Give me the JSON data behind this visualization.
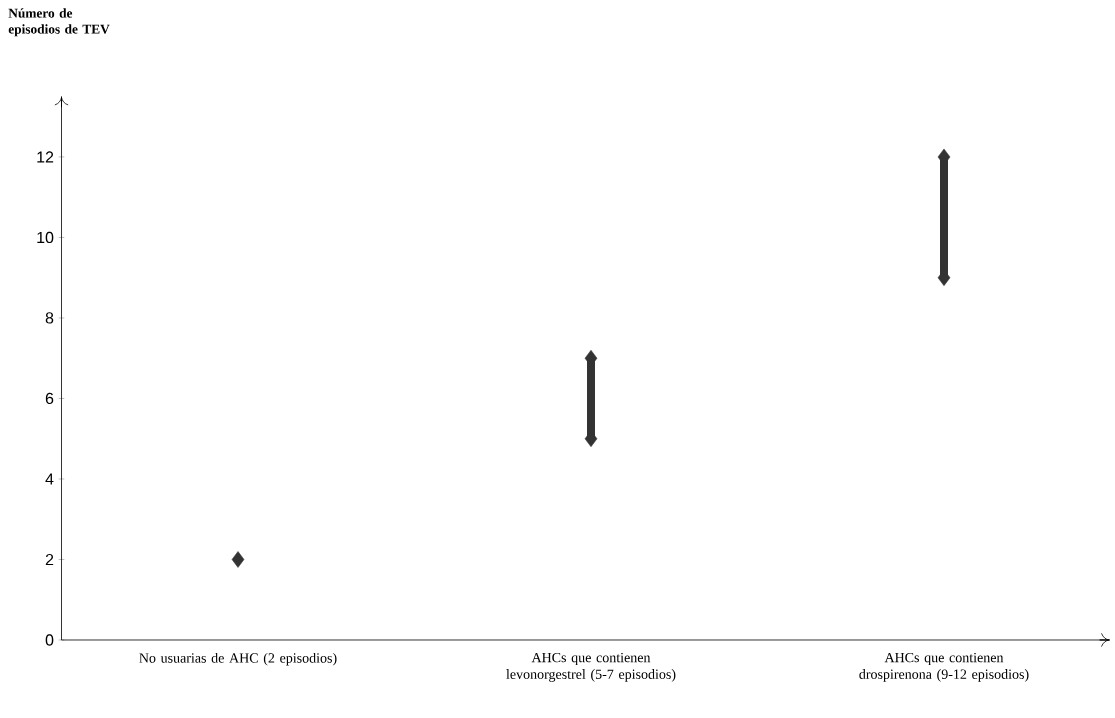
{
  "chart_data": {
    "type": "scatter",
    "ylabel": "Número de episodios de TEV",
    "categories": [
      "No usuarias de AHC (2 episodios)",
      "AHCs que contienen levonorgestrel (5-7 episodios)",
      "AHCs que contienen drospirenona (9-12 episodios)"
    ],
    "series": [
      {
        "type": "bar",
        "color": "#333333",
        "base": [
          null,
          5,
          9
        ],
        "values": [
          null,
          2,
          3
        ]
      },
      {
        "color": "#333333",
        "values": [
          2,
          5,
          9
        ]
      },
      {
        "color": "#333333",
        "values": [
          null,
          7,
          12
        ]
      }
    ],
    "ylim": [
      0,
      13.5
    ],
    "yticks": [
      0,
      2,
      4,
      6,
      8,
      10,
      12
    ],
    "marker": "diamond"
  }
}
